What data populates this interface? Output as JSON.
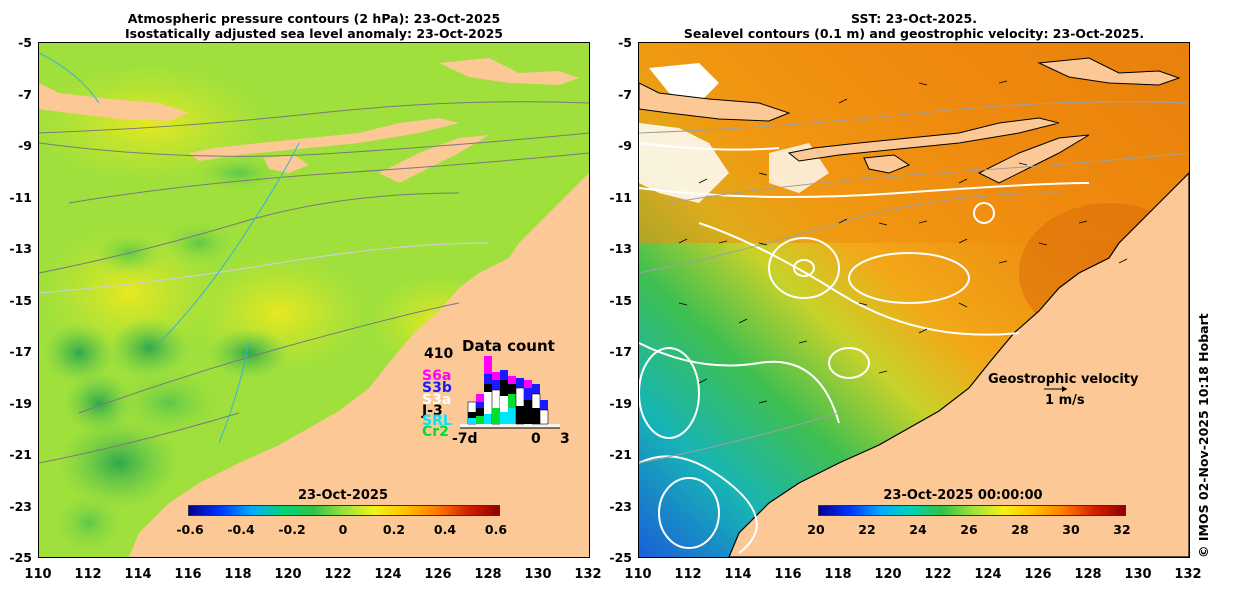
{
  "left": {
    "title_line1": "Atmospheric pressure contours (2 hPa): 23-Oct-2025",
    "title_line2": "Isostatically adjusted sea level anomaly: 23-Oct-2025",
    "colorbar_title": "23-Oct-2025",
    "colorbar_labels": [
      "-0.6",
      "-0.4",
      "-0.2",
      "0",
      "0.2",
      "0.4",
      "0.6"
    ]
  },
  "right": {
    "title_line1": "SST: 23-Oct-2025.",
    "title_line2": "Sealevel contours (0.1 m) and geostrophic velocity: 23-Oct-2025.",
    "colorbar_title": "23-Oct-2025 00:00:00",
    "colorbar_labels": [
      "20",
      "22",
      "24",
      "26",
      "28",
      "30",
      "32"
    ],
    "velocity_label": "Geostrophic velocity",
    "velocity_scale": "1 m/s",
    "credit": "© IMOS 02-Nov-2025 10:18 Hobart"
  },
  "axes": {
    "y_ticks": [
      "-5",
      "-7",
      "-9",
      "-11",
      "-13",
      "-15",
      "-17",
      "-19",
      "-21",
      "-23",
      "-25"
    ],
    "x_ticks": [
      "110",
      "112",
      "114",
      "116",
      "118",
      "120",
      "122",
      "124",
      "126",
      "128",
      "130",
      "132"
    ]
  },
  "data_count": {
    "title": "Data count",
    "max": "410",
    "satellites": [
      {
        "name": "S6a",
        "color": "#ff00ff"
      },
      {
        "name": "S3b",
        "color": "#1a1aff"
      },
      {
        "name": "S3a",
        "color": "#ffffff"
      },
      {
        "name": "J-3",
        "color": "#000000"
      },
      {
        "name": "SRL",
        "color": "#00e5ff"
      },
      {
        "name": "Cr2",
        "color": "#00dd33"
      }
    ],
    "x_min": "-7d",
    "x_zero": "0",
    "x_max": "3"
  },
  "colors": {
    "land": "#fcc896",
    "sea_anomaly": "#9be23c",
    "sst_warm": "#f0900e"
  }
}
